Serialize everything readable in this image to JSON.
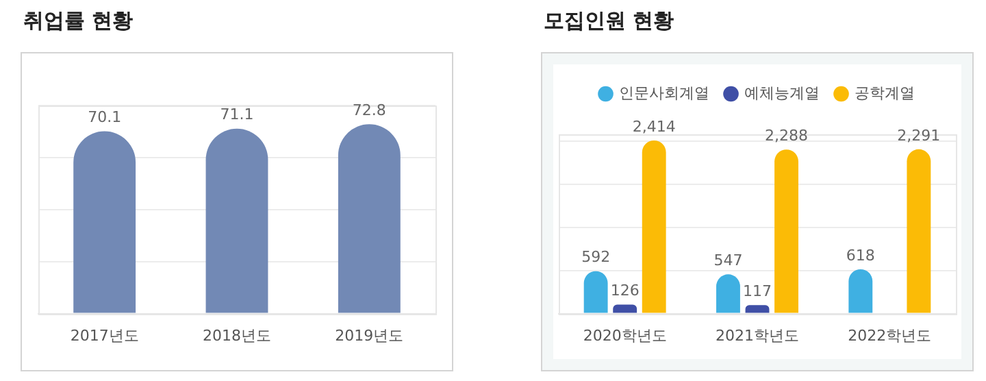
{
  "chart_data": [
    {
      "type": "bar",
      "title": "취업률 현황",
      "categories": [
        "2017년도",
        "2018년도",
        "2019년도"
      ],
      "values": [
        70.1,
        71.1,
        72.8
      ],
      "color": "#7289b5",
      "ylim": [
        0,
        80
      ],
      "yticks": [
        {
          "value": 0,
          "label": null
        },
        {
          "value": 20,
          "label": null
        },
        {
          "value": 40,
          "label": null
        },
        {
          "value": 60,
          "label": null
        },
        {
          "value": 80,
          "label": null
        }
      ],
      "grid": "y",
      "tick_labels": "x",
      "data_labels": true
    },
    {
      "type": "bar",
      "title": "모집인원 현황",
      "categories": [
        "2020학년도",
        "2021학년도",
        "2022학년도"
      ],
      "series": [
        {
          "name": "인문사회계열",
          "color": "#3fb0e2",
          "values": [
            592,
            547,
            618
          ],
          "value_labels": [
            "592",
            "547",
            "618"
          ]
        },
        {
          "name": "예체능계열",
          "color": "#3f4fa6",
          "values": [
            126,
            117,
            null
          ],
          "value_labels": [
            "126",
            "117",
            null
          ]
        },
        {
          "name": "공학계열",
          "color": "#fbbb06",
          "values": [
            2414,
            2288,
            2291
          ],
          "value_labels": [
            "2,414",
            "2,288",
            "2,291"
          ]
        }
      ],
      "ylim": [
        0,
        2500
      ],
      "yticks": [
        {
          "value": 0,
          "label": null
        },
        {
          "value": 600,
          "label": null
        },
        {
          "value": 1200,
          "label": null
        },
        {
          "value": 1800,
          "label": null
        },
        {
          "value": 2400,
          "label": null
        }
      ],
      "grid": "y",
      "tick_labels": "x",
      "legend": "top"
    }
  ]
}
